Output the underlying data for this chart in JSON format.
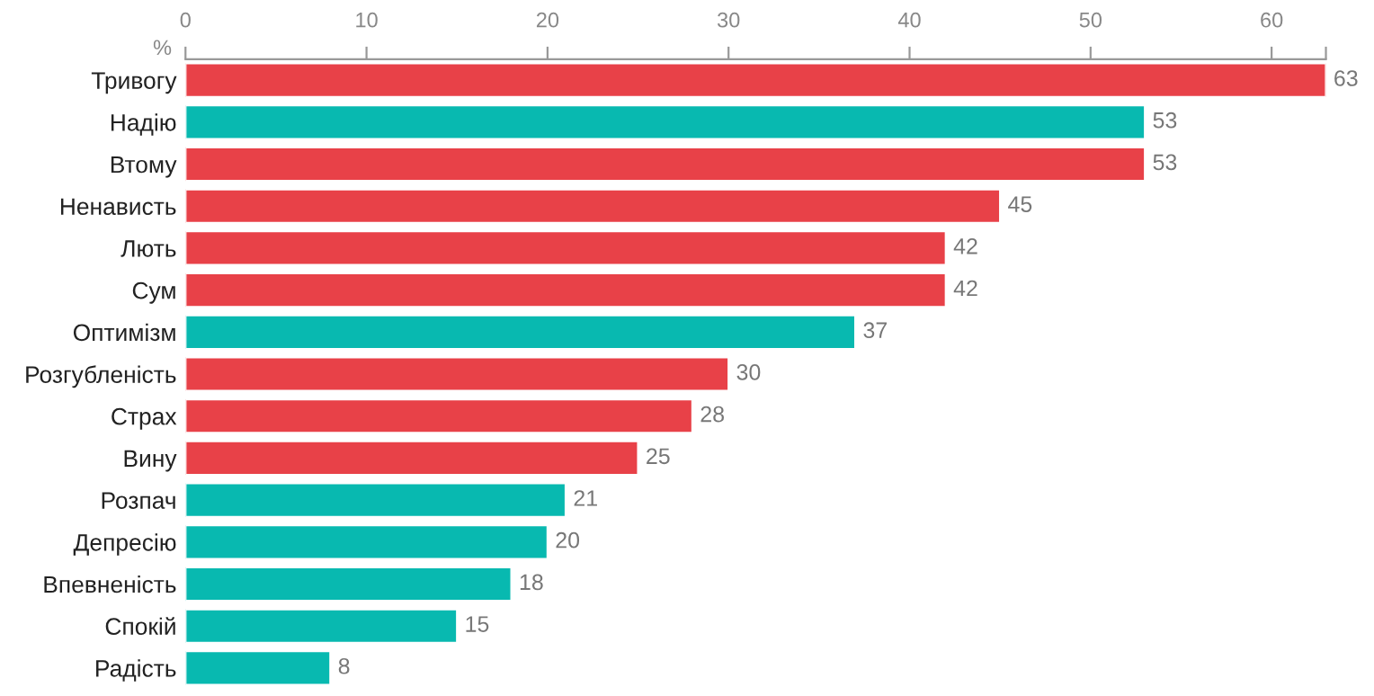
{
  "chart_data": {
    "type": "bar",
    "orientation": "horizontal",
    "xlabel": "%",
    "categories": [
      "Тривогу",
      "Надію",
      "Втому",
      "Ненависть",
      "Лють",
      "Сум",
      "Оптимізм",
      "Розгубленість",
      "Страх",
      "Вину",
      "Розпач",
      "Депресію",
      "Впевненість",
      "Спокій",
      "Радість"
    ],
    "values": [
      63,
      53,
      53,
      45,
      42,
      42,
      37,
      30,
      28,
      25,
      21,
      20,
      18,
      15,
      8
    ],
    "colors": [
      "#e84148",
      "#08b9b0",
      "#e84148",
      "#e84148",
      "#e84148",
      "#e84148",
      "#08b9b0",
      "#e84148",
      "#e84148",
      "#e84148",
      "#08b9b0",
      "#08b9b0",
      "#08b9b0",
      "#08b9b0",
      "#08b9b0"
    ],
    "xlim": [
      0,
      63
    ],
    "xticks": [
      0,
      10,
      20,
      30,
      40,
      50,
      60,
      {
        "value": 63,
        "label": null
      }
    ],
    "data_labels": true,
    "grid": false,
    "legend": false
  }
}
